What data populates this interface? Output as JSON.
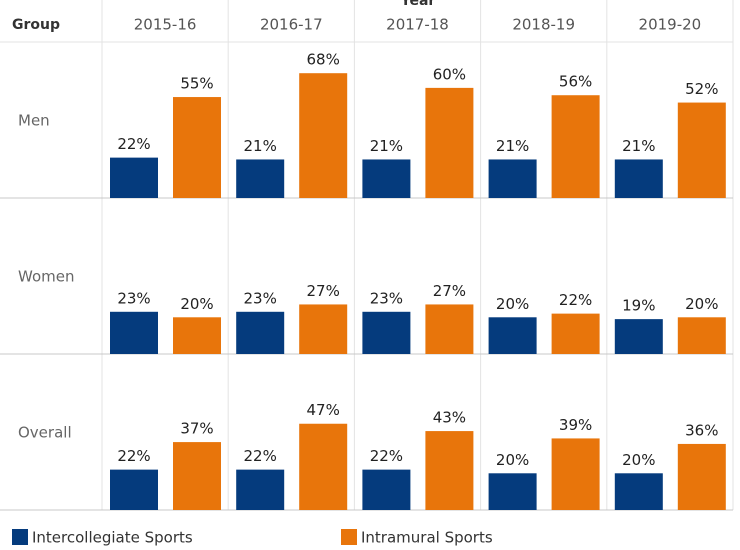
{
  "chart_data": {
    "type": "bar",
    "x_title": "Year",
    "row_title": "Group",
    "categories": [
      "2015-16",
      "2016-17",
      "2017-18",
      "2018-19",
      "2019-20"
    ],
    "rows": [
      "Men",
      "Women",
      "Overall"
    ],
    "ylim": [
      0,
      85
    ],
    "series": [
      {
        "name": "Intercollegiate Sports",
        "color": "#053b7d",
        "values": [
          [
            22,
            21,
            21,
            21,
            21
          ],
          [
            23,
            23,
            23,
            20,
            19
          ],
          [
            22,
            22,
            22,
            20,
            20
          ]
        ],
        "value_labels": [
          [
            "22%",
            "21%",
            "21%",
            "21%",
            "21%"
          ],
          [
            "23%",
            "23%",
            "23%",
            "20%",
            "19%"
          ],
          [
            "22%",
            "22%",
            "22%",
            "20%",
            "20%"
          ]
        ]
      },
      {
        "name": "Intramural Sports",
        "color": "#e8750b",
        "values": [
          [
            55,
            68,
            60,
            56,
            52
          ],
          [
            20,
            27,
            27,
            22,
            20
          ],
          [
            37,
            47,
            43,
            39,
            36
          ]
        ],
        "value_labels": [
          [
            "55%",
            "68%",
            "60%",
            "56%",
            "52%"
          ],
          [
            "20%",
            "27%",
            "27%",
            "22%",
            "20%"
          ],
          [
            "37%",
            "47%",
            "43%",
            "39%",
            "36%"
          ]
        ]
      }
    ]
  }
}
